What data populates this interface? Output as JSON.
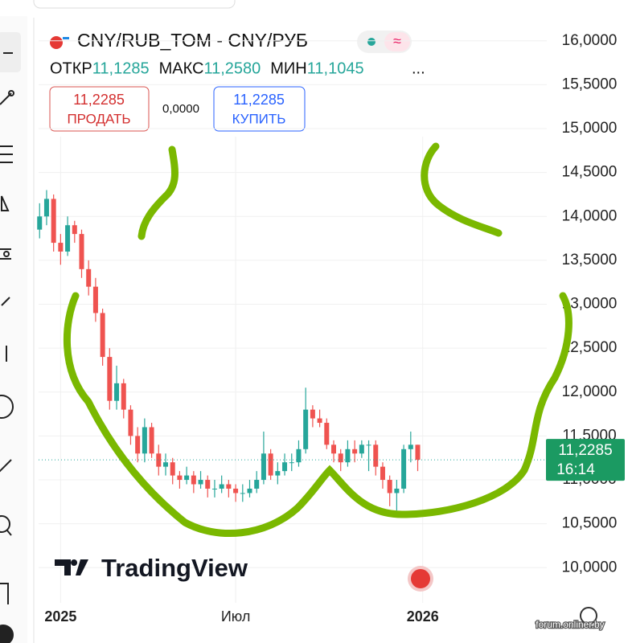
{
  "chart_data": {
    "type": "candlestick",
    "title": "CNY/RUB_TOM - CNY/РУБ",
    "ohlc_header": [
      {
        "label": "ОТКР",
        "value": "11,1285"
      },
      {
        "label": "МАКС",
        "value": "11,2580"
      },
      {
        "label": "МИН",
        "value": "11,1045"
      }
    ],
    "more": "...",
    "sell": {
      "price": "11,2285",
      "label": "ПРОДАТЬ"
    },
    "spread": "0,0000",
    "buy": {
      "price": "11,2285",
      "label": "КУПИТЬ"
    },
    "x": [
      -21,
      -14,
      -7,
      0,
      7,
      14,
      21,
      28,
      35,
      42,
      49,
      56,
      63,
      70,
      77,
      84,
      91,
      98,
      105,
      112,
      119,
      126,
      133,
      140,
      147,
      154,
      161,
      168,
      175,
      182,
      189,
      196,
      203,
      210,
      217,
      224,
      231,
      238,
      245,
      252,
      259,
      266,
      273,
      280,
      287,
      294,
      301,
      308,
      315,
      322,
      329,
      336,
      343,
      350,
      357
    ],
    "open": [
      13.85,
      14.0,
      14.2,
      13.7,
      13.6,
      13.9,
      13.8,
      13.4,
      13.2,
      12.9,
      12.4,
      11.9,
      12.1,
      11.8,
      11.5,
      11.3,
      11.6,
      11.3,
      11.15,
      11.2,
      11.05,
      11.0,
      11.05,
      10.95,
      11.0,
      10.9,
      10.9,
      10.95,
      10.9,
      10.85,
      10.85,
      10.9,
      11.0,
      11.3,
      11.05,
      11.1,
      11.2,
      11.2,
      11.35,
      11.8,
      11.7,
      11.65,
      11.4,
      11.3,
      11.2,
      11.35,
      11.3,
      11.4,
      11.4,
      11.15,
      11.0,
      10.85,
      10.9,
      11.35,
      11.4
    ],
    "high": [
      14.15,
      14.3,
      14.25,
      13.8,
      14.0,
      13.95,
      13.85,
      13.5,
      13.3,
      12.95,
      12.5,
      12.3,
      12.15,
      11.85,
      11.6,
      11.7,
      11.65,
      11.4,
      11.3,
      11.25,
      11.1,
      11.15,
      11.1,
      11.1,
      11.05,
      11.0,
      11.05,
      11.0,
      10.95,
      10.95,
      11.0,
      11.1,
      11.55,
      11.35,
      11.2,
      11.3,
      11.3,
      11.45,
      12.05,
      11.85,
      11.8,
      11.7,
      11.45,
      11.35,
      11.45,
      11.45,
      11.45,
      11.45,
      11.45,
      11.2,
      11.05,
      11.0,
      11.4,
      11.55,
      11.4
    ],
    "low": [
      13.75,
      13.9,
      13.6,
      13.45,
      13.55,
      13.7,
      13.3,
      13.1,
      12.8,
      12.3,
      11.8,
      11.8,
      11.7,
      11.4,
      11.2,
      11.2,
      11.25,
      11.05,
      11.05,
      10.95,
      10.9,
      10.95,
      10.85,
      10.9,
      10.8,
      10.8,
      10.85,
      10.8,
      10.75,
      10.75,
      10.8,
      10.85,
      10.95,
      11.0,
      10.95,
      11.05,
      11.1,
      11.15,
      11.3,
      11.6,
      11.6,
      11.35,
      11.2,
      11.1,
      11.15,
      11.2,
      11.25,
      11.1,
      11.05,
      10.9,
      10.7,
      10.65,
      10.85,
      11.2,
      11.1
    ],
    "close": [
      14.0,
      14.2,
      13.7,
      13.6,
      13.9,
      13.8,
      13.4,
      13.2,
      12.9,
      12.4,
      11.9,
      12.1,
      11.8,
      11.5,
      11.3,
      11.6,
      11.3,
      11.15,
      11.2,
      11.05,
      11.0,
      11.05,
      10.95,
      11.0,
      10.9,
      10.9,
      10.95,
      10.9,
      10.85,
      10.85,
      10.9,
      11.0,
      11.3,
      11.05,
      11.1,
      11.2,
      11.2,
      11.35,
      11.8,
      11.7,
      11.65,
      11.4,
      11.3,
      11.2,
      11.35,
      11.3,
      11.4,
      11.4,
      11.15,
      11.0,
      10.85,
      10.9,
      11.35,
      11.4,
      11.2285
    ],
    "up_color": "#26a69a",
    "down_color": "#ef5350",
    "xlim": [
      -22,
      486
    ],
    "xticks": [
      {
        "value": 0,
        "label": "2025"
      },
      {
        "value": 175,
        "label": "Июл"
      },
      {
        "value": 362,
        "label": "2026"
      }
    ],
    "ylim": [
      9.6,
      16.3
    ],
    "yticks": [
      {
        "value": 10,
        "label": "10,0000"
      },
      {
        "value": 10.5,
        "label": "10,5000"
      },
      {
        "value": 11,
        "label": "11,0000"
      },
      {
        "value": 11.5,
        "label": "11,5000"
      },
      {
        "value": 12,
        "label": "12,0000"
      },
      {
        "value": 12.5,
        "label": "12,5000"
      },
      {
        "value": 13,
        "label": "13,0000"
      },
      {
        "value": 13.5,
        "label": "13,5000"
      },
      {
        "value": 14,
        "label": "14,0000"
      },
      {
        "value": 14.5,
        "label": "14,5000"
      },
      {
        "value": 15,
        "label": "15,0000"
      },
      {
        "value": 15.5,
        "label": "15,5000"
      },
      {
        "value": 16,
        "label": "16,0000"
      }
    ],
    "last_price": {
      "value": 11.2285,
      "label": "11,2285",
      "time": "16:14"
    },
    "grid": true,
    "watermark": "TradingView",
    "source": "forum.onliner.by"
  }
}
